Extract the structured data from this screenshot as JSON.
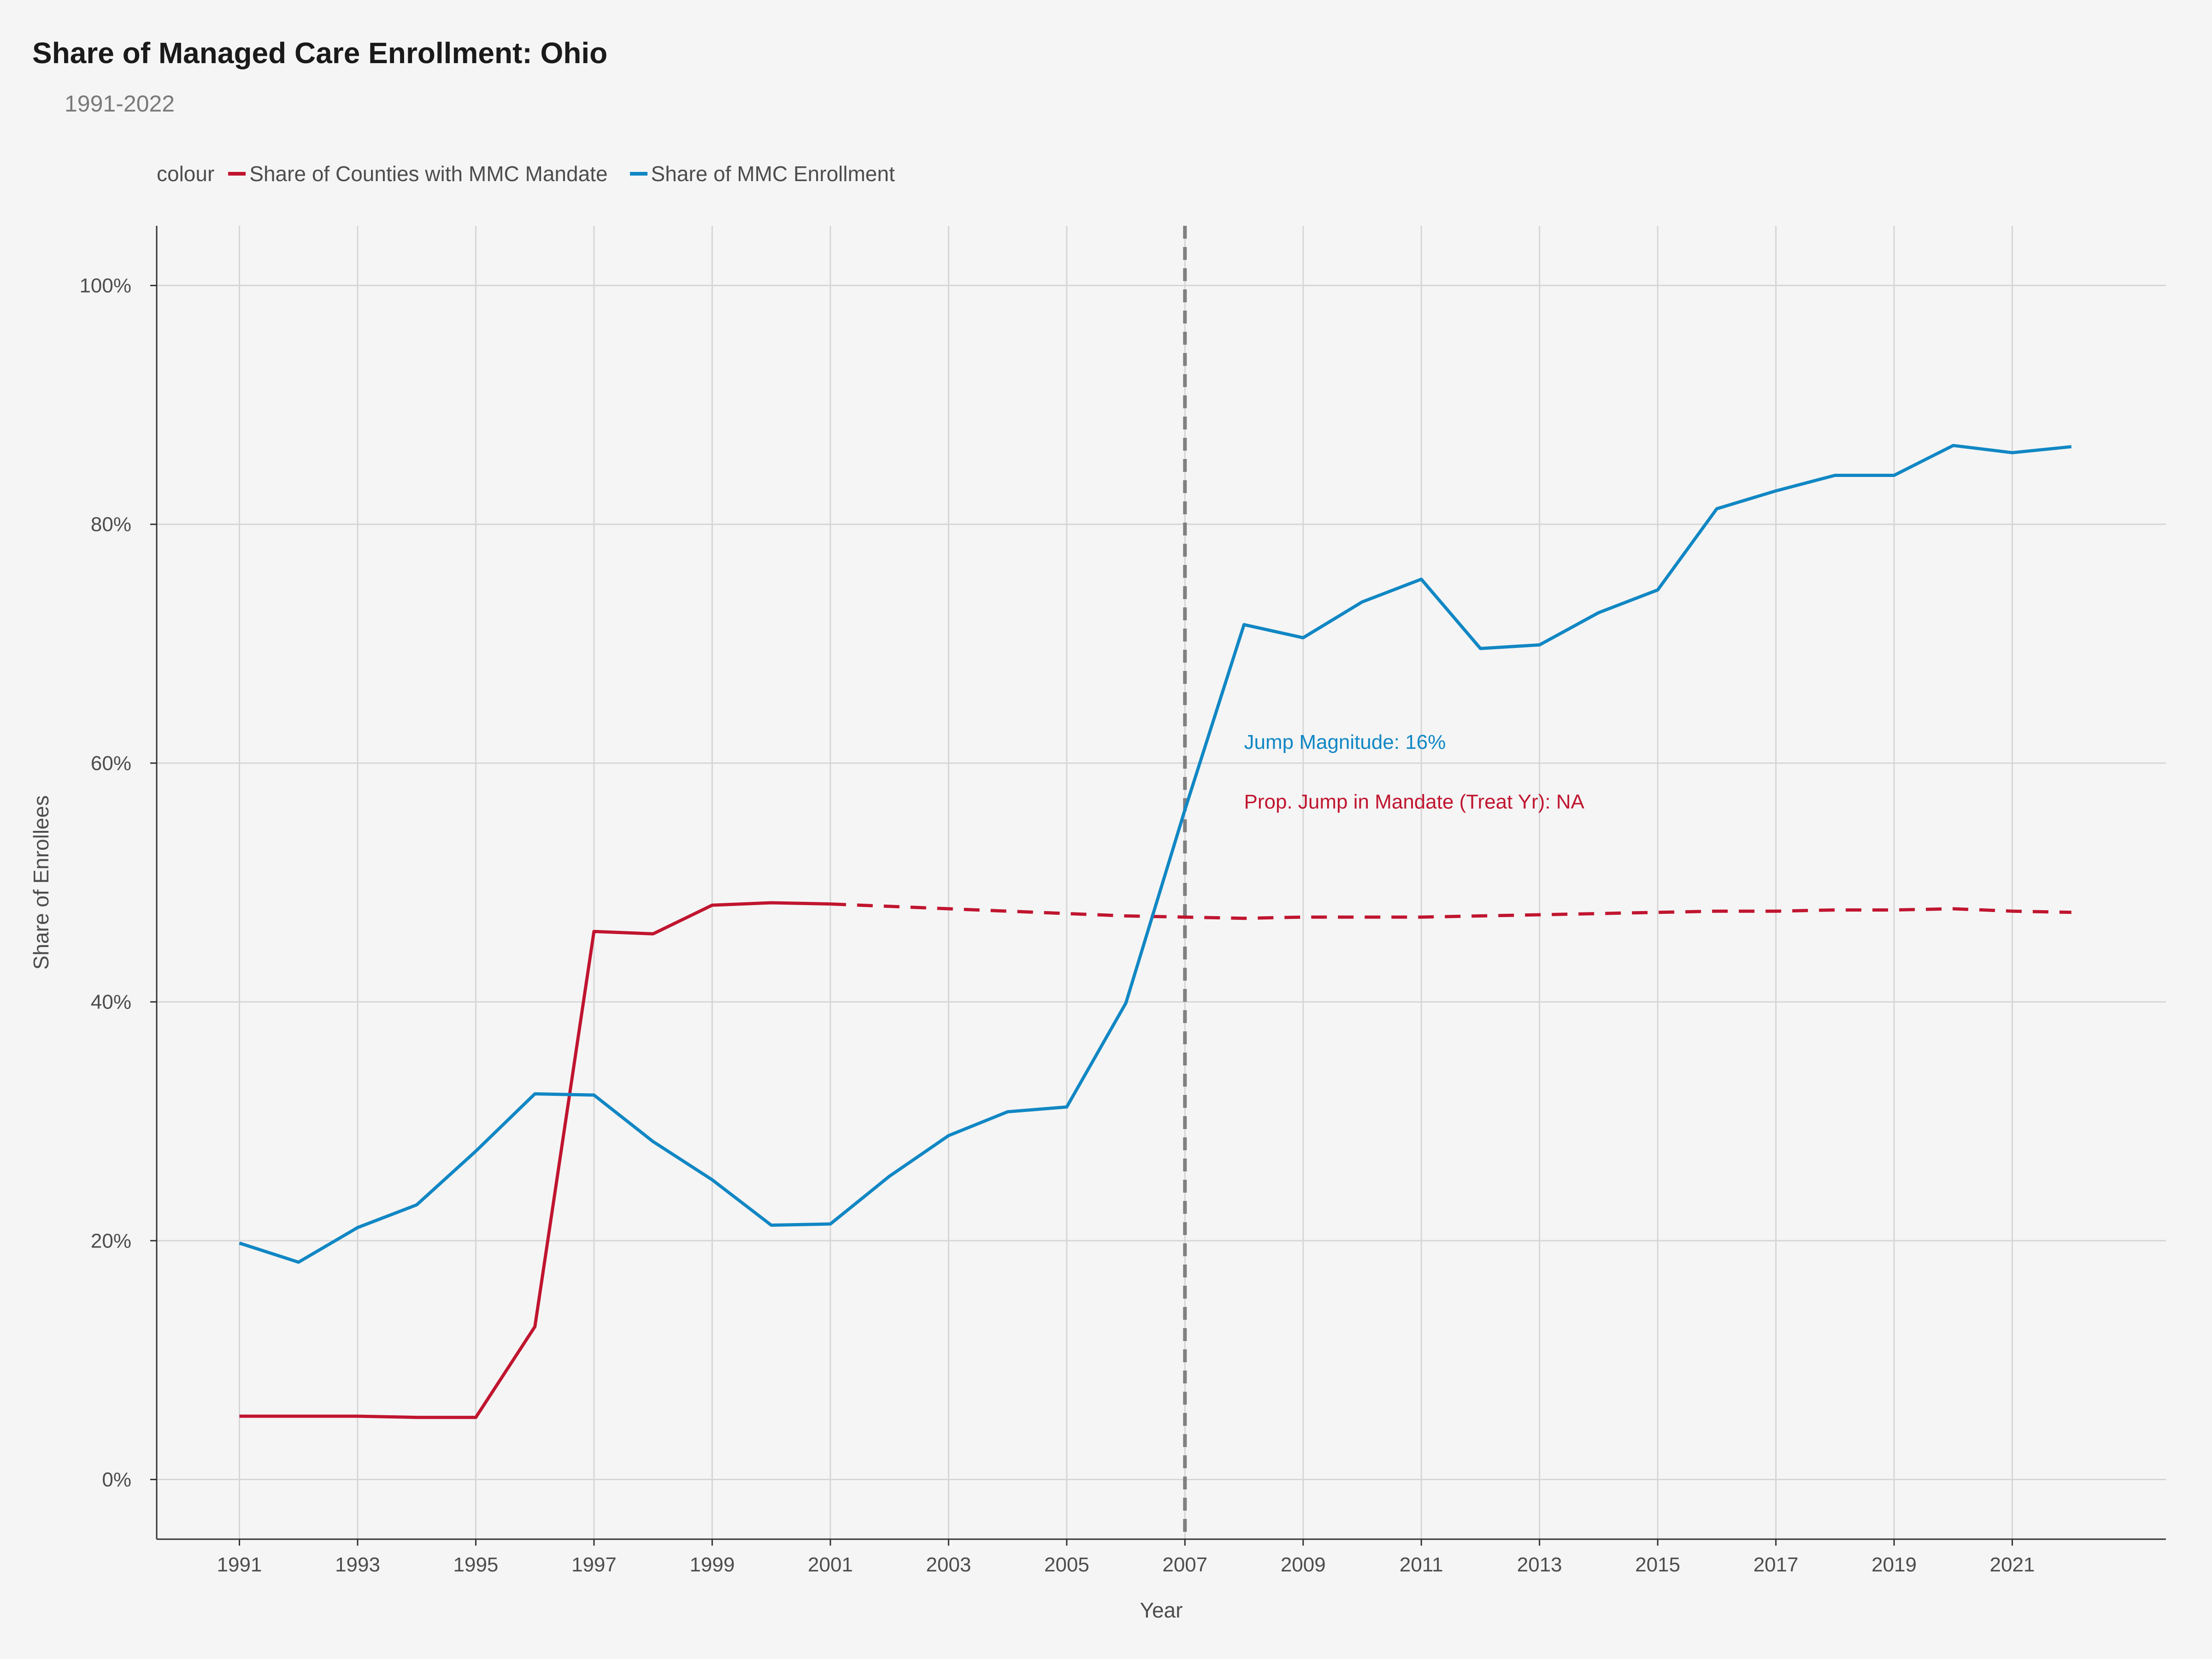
{
  "chart_data": {
    "type": "line",
    "title": "Share of Managed Care Enrollment: Ohio",
    "subtitle": "1991-2022",
    "xlabel": "Year",
    "ylabel": "Share of Enrollees",
    "xlim": [
      1989.6,
      2023.6
    ],
    "ylim": [
      -5,
      105
    ],
    "x_ticks": [
      1991,
      1993,
      1995,
      1997,
      1999,
      2001,
      2003,
      2005,
      2007,
      2009,
      2011,
      2013,
      2015,
      2017,
      2019,
      2021
    ],
    "y_ticks": [
      0,
      20,
      40,
      60,
      80,
      100
    ],
    "y_tick_labels": [
      "0%",
      "20%",
      "40%",
      "60%",
      "80%",
      "100%"
    ],
    "grid": true,
    "legend_title": "colour",
    "legend_position": "top-left",
    "treatment_year": 2007,
    "series": [
      {
        "name": "Share of Counties with MMC Mandate",
        "color": "#c0152f",
        "segments": [
          {
            "style": "solid",
            "x": [
              1991,
              1992,
              1993,
              1994,
              1995,
              1996,
              1997,
              1998,
              1999,
              2000,
              2001
            ],
            "y": [
              5.3,
              5.3,
              5.3,
              5.2,
              5.2,
              12.8,
              45.9,
              45.7,
              48.1,
              48.3,
              48.2
            ]
          },
          {
            "style": "dashed",
            "x": [
              2001,
              2002,
              2003,
              2004,
              2005,
              2006,
              2007,
              2008,
              2009,
              2010,
              2011,
              2012,
              2013,
              2014,
              2015,
              2016,
              2017,
              2018,
              2019,
              2020,
              2021,
              2022
            ],
            "y": [
              48.2,
              48.0,
              47.8,
              47.6,
              47.4,
              47.2,
              47.1,
              47.0,
              47.1,
              47.1,
              47.1,
              47.2,
              47.3,
              47.4,
              47.5,
              47.6,
              47.6,
              47.7,
              47.7,
              47.8,
              47.6,
              47.5
            ]
          }
        ]
      },
      {
        "name": "Share of MMC Enrollment",
        "color": "#1187c4",
        "segments": [
          {
            "style": "solid",
            "x": [
              1991,
              1992,
              1993,
              1994,
              1995,
              1996,
              1997,
              1998,
              1999,
              2000,
              2001,
              2002,
              2003,
              2004,
              2005,
              2006,
              2007,
              2008,
              2009,
              2010,
              2011,
              2012,
              2013,
              2014,
              2015,
              2016,
              2017,
              2018,
              2019,
              2020,
              2021,
              2022
            ],
            "y": [
              19.8,
              18.2,
              21.1,
              23.0,
              27.5,
              32.3,
              32.2,
              28.3,
              25.1,
              21.3,
              21.4,
              25.4,
              28.8,
              30.8,
              31.2,
              39.9,
              56.1,
              71.6,
              70.5,
              73.5,
              75.4,
              69.6,
              69.9,
              72.6,
              74.5,
              81.3,
              82.8,
              84.1,
              84.1,
              86.6,
              86.0,
              86.5
            ]
          }
        ]
      }
    ],
    "annotations": [
      {
        "text": "Jump Magnitude: 16%",
        "x": 2008,
        "y": 61.2,
        "color": "#1187c4"
      },
      {
        "text": "Prop. Jump in Mandate (Treat Yr): NA",
        "x": 2008,
        "y": 56.2,
        "color": "#c0152f"
      }
    ]
  }
}
